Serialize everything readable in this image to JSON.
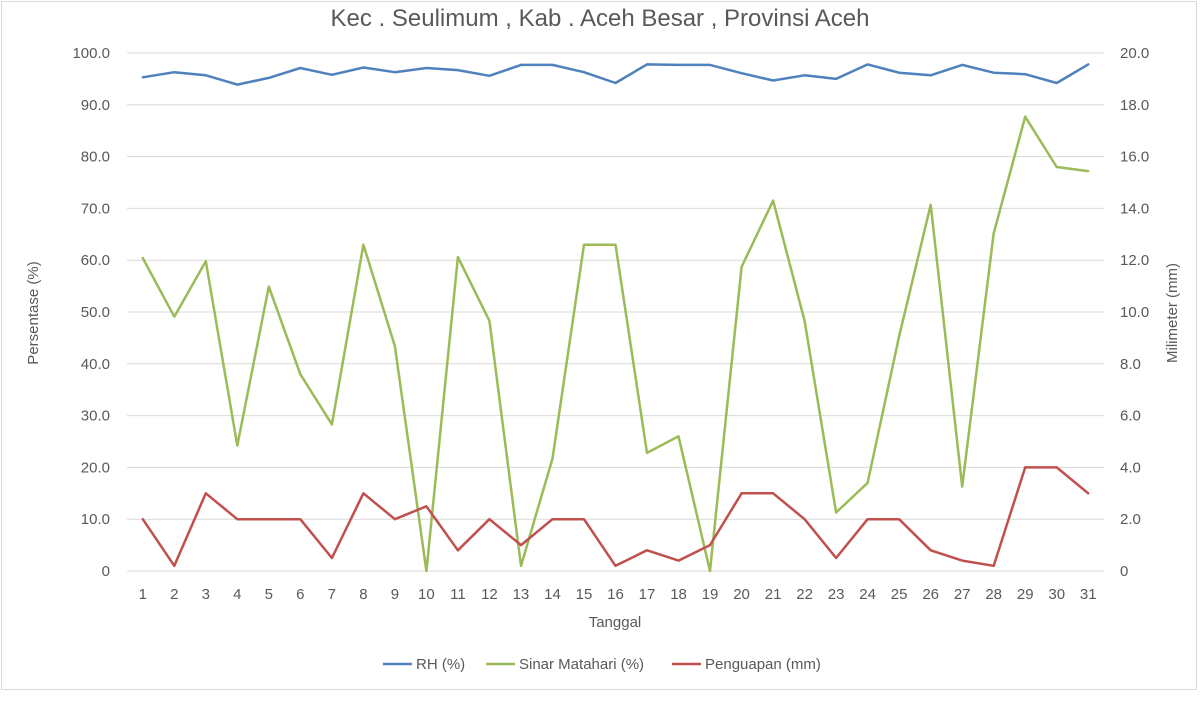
{
  "chart_data": {
    "type": "line",
    "title": "Kec . Seulimum , Kab . Aceh Besar , Provinsi  Aceh",
    "xlabel": "Tanggal",
    "ylabel": "Persentase (%)",
    "y2label": "Milimeter (mm)",
    "categories": [
      "1",
      "2",
      "3",
      "4",
      "5",
      "6",
      "7",
      "8",
      "9",
      "10",
      "11",
      "12",
      "13",
      "14",
      "15",
      "16",
      "17",
      "18",
      "19",
      "20",
      "21",
      "22",
      "23",
      "24",
      "25",
      "26",
      "27",
      "28",
      "29",
      "30",
      "31"
    ],
    "ylim": [
      0,
      100
    ],
    "y2lim": [
      0,
      20
    ],
    "yticks": [
      "0",
      "10.0",
      "20.0",
      "30.0",
      "40.0",
      "50.0",
      "60.0",
      "70.0",
      "80.0",
      "90.0",
      "100.0"
    ],
    "y2ticks": [
      "0",
      "2.0",
      "4.0",
      "6.0",
      "8.0",
      "10.0",
      "12.0",
      "14.0",
      "16.0",
      "18.0",
      "20.0"
    ],
    "grid": true,
    "legend_position": "bottom",
    "series": [
      {
        "name": "RH (%)",
        "axis": "left",
        "color": "#4f81bd",
        "values": [
          95.3,
          96.3,
          95.7,
          93.9,
          95.2,
          97.1,
          95.8,
          97.2,
          96.3,
          97.1,
          96.7,
          95.6,
          97.7,
          97.7,
          96.3,
          94.2,
          97.8,
          97.7,
          97.7,
          96.1,
          94.7,
          95.7,
          95.0,
          97.8,
          96.2,
          95.7,
          97.7,
          96.2,
          95.9,
          94.2,
          97.8
        ]
      },
      {
        "name": "Sinar Matahari (%)",
        "axis": "left",
        "color": "#9bbb59",
        "values": [
          60.4,
          49.1,
          59.8,
          24.2,
          54.9,
          38.0,
          28.3,
          63.0,
          43.4,
          0,
          60.6,
          48.3,
          1.0,
          21.7,
          63.0,
          63.0,
          22.8,
          26.0,
          0,
          58.7,
          71.5,
          48.3,
          11.3,
          17.0,
          45.3,
          70.7,
          16.3,
          65.2,
          87.7,
          78.0,
          77.2
        ]
      },
      {
        "name": "Penguapan (mm)",
        "axis": "right",
        "color": "#c0504d",
        "values": [
          2.0,
          0.2,
          3.0,
          2.0,
          2.0,
          2.0,
          0.5,
          3.0,
          2.0,
          2.5,
          0.8,
          2.0,
          1.0,
          2.0,
          2.0,
          0.2,
          0.8,
          0.4,
          1.0,
          3.0,
          3.0,
          2.0,
          0.5,
          2.0,
          2.0,
          0.8,
          0.4,
          0.2,
          4.0,
          4.0,
          3.0
        ]
      }
    ]
  }
}
